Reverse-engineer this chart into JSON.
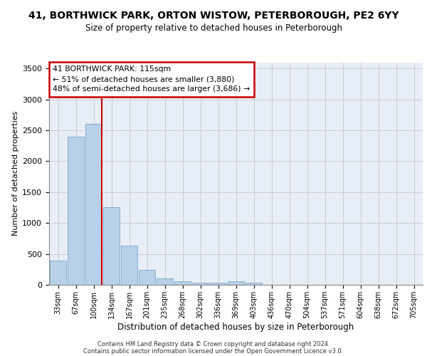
{
  "title_line1": "41, BORTHWICK PARK, ORTON WISTOW, PETERBOROUGH, PE2 6YY",
  "title_line2": "Size of property relative to detached houses in Peterborough",
  "xlabel": "Distribution of detached houses by size in Peterborough",
  "ylabel": "Number of detached properties",
  "categories": [
    "33sqm",
    "67sqm",
    "100sqm",
    "134sqm",
    "167sqm",
    "201sqm",
    "235sqm",
    "268sqm",
    "302sqm",
    "336sqm",
    "369sqm",
    "403sqm",
    "436sqm",
    "470sqm",
    "504sqm",
    "537sqm",
    "571sqm",
    "604sqm",
    "638sqm",
    "672sqm",
    "705sqm"
  ],
  "values": [
    390,
    2400,
    2600,
    1250,
    630,
    245,
    105,
    60,
    40,
    30,
    55,
    30,
    0,
    0,
    0,
    0,
    0,
    0,
    0,
    0,
    0
  ],
  "bar_color": "#b8d0e8",
  "bar_edge_color": "#7aaac8",
  "annotation_text_line1": "41 BORTHWICK PARK: 115sqm",
  "annotation_text_line2": "← 51% of detached houses are smaller (3,880)",
  "annotation_text_line3": "48% of semi-detached houses are larger (3,686) →",
  "annotation_box_facecolor": "#ffffff",
  "annotation_box_edgecolor": "#cc0000",
  "vline_color": "#cc0000",
  "ylim": [
    0,
    3600
  ],
  "yticks": [
    0,
    500,
    1000,
    1500,
    2000,
    2500,
    3000,
    3500
  ],
  "grid_color": "#cccccc",
  "bg_color": "#e8eef8",
  "footer_line1": "Contains HM Land Registry data © Crown copyright and database right 2024.",
  "footer_line2": "Contains public sector information licensed under the Open Government Licence v3.0."
}
